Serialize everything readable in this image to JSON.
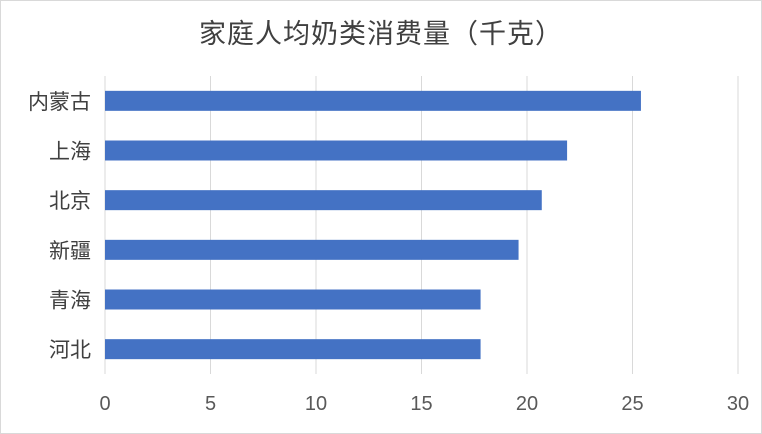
{
  "chart_data": {
    "type": "bar",
    "orientation": "horizontal",
    "title": "家庭人均奶类消费量（千克）",
    "categories": [
      "内蒙古",
      "上海",
      "北京",
      "新疆",
      "青海",
      "河北"
    ],
    "values": [
      25.4,
      21.9,
      20.7,
      19.6,
      17.8,
      17.8
    ],
    "xlim": [
      0,
      30
    ],
    "xticks": [
      0,
      5,
      10,
      15,
      20,
      25,
      30
    ],
    "grid": "vertical",
    "bar_color": "#4472c4",
    "grid_color": "#d9d9d9"
  }
}
